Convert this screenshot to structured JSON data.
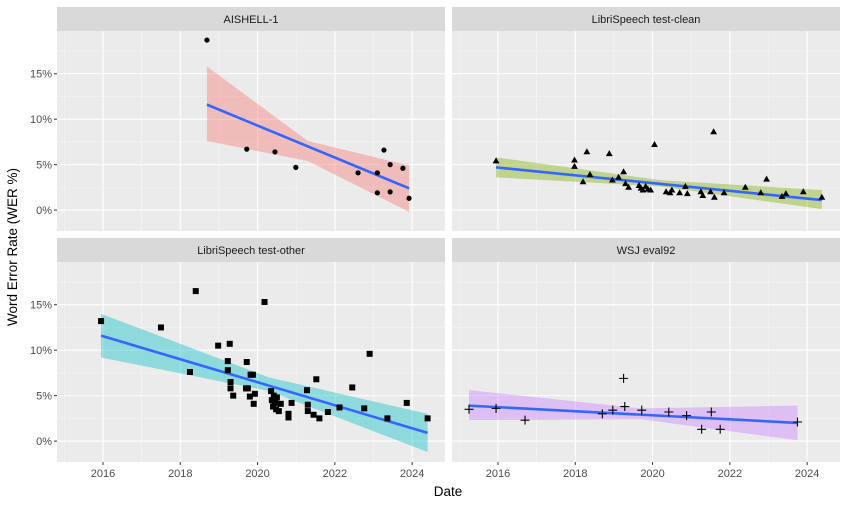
{
  "chart_data": {
    "type": "scatter",
    "layout": "facet-grid 2x2",
    "xlabel": "Date",
    "ylabel": "Word Error Rate (WER %)",
    "xlim": [
      2014.81,
      2024.85
    ],
    "ylim": [
      -2.3,
      19.7
    ],
    "x_ticks": [
      2016,
      2018,
      2020,
      2022,
      2024
    ],
    "x_tick_labels": [
      "2016",
      "2018",
      "2020",
      "2022",
      "2024"
    ],
    "y_ticks": [
      0,
      5,
      10,
      15
    ],
    "y_tick_labels": [
      "0%",
      "5%",
      "10%",
      "15%"
    ],
    "grid": true,
    "trend_color": "#3366FF",
    "point_color": "#000000",
    "panel_background": "#EBEBEB",
    "strip_background": "#D9D9D9",
    "panels": [
      {
        "title": "AISHELL-1",
        "marker": "circle",
        "band_color": "#F8766D",
        "points": [
          [
            2018.69,
            18.7
          ],
          [
            2019.72,
            6.7
          ],
          [
            2020.45,
            6.4
          ],
          [
            2020.99,
            4.7
          ],
          [
            2022.6,
            4.1
          ],
          [
            2023.1,
            1.9
          ],
          [
            2023.1,
            4.1
          ],
          [
            2023.27,
            6.6
          ],
          [
            2023.43,
            5.0
          ],
          [
            2023.43,
            2.0
          ],
          [
            2023.76,
            4.6
          ],
          [
            2023.92,
            1.3
          ]
        ],
        "trend": {
          "x": [
            2018.69,
            2023.92
          ],
          "y": [
            11.6,
            2.4
          ]
        },
        "band": {
          "x": [
            2018.69,
            2021.3,
            2023.92
          ],
          "lower": [
            7.6,
            5.4,
            -0.2
          ],
          "upper": [
            15.8,
            7.6,
            4.9
          ]
        }
      },
      {
        "title": "LibriSpeech test-clean",
        "marker": "triangle",
        "band_color": "#7CAE00",
        "points": [
          [
            2015.95,
            5.4
          ],
          [
            2017.98,
            4.8
          ],
          [
            2017.98,
            5.5
          ],
          [
            2018.3,
            6.4
          ],
          [
            2018.88,
            6.2
          ],
          [
            2018.2,
            3.1
          ],
          [
            2018.38,
            3.9
          ],
          [
            2018.96,
            3.3
          ],
          [
            2019.12,
            3.6
          ],
          [
            2019.25,
            4.2
          ],
          [
            2019.3,
            2.9
          ],
          [
            2019.38,
            2.5
          ],
          [
            2019.65,
            2.7
          ],
          [
            2019.7,
            2.4
          ],
          [
            2019.75,
            2.2
          ],
          [
            2019.82,
            2.6
          ],
          [
            2019.88,
            2.3
          ],
          [
            2019.95,
            2.2
          ],
          [
            2020.05,
            7.2
          ],
          [
            2020.35,
            2.0
          ],
          [
            2020.45,
            1.9
          ],
          [
            2020.5,
            2.2
          ],
          [
            2020.7,
            1.9
          ],
          [
            2020.85,
            2.6
          ],
          [
            2020.9,
            1.8
          ],
          [
            2021.25,
            2.0
          ],
          [
            2021.3,
            1.6
          ],
          [
            2021.5,
            2.0
          ],
          [
            2021.58,
            8.6
          ],
          [
            2021.6,
            1.4
          ],
          [
            2021.85,
            1.9
          ],
          [
            2022.4,
            2.5
          ],
          [
            2022.8,
            1.9
          ],
          [
            2022.95,
            3.4
          ],
          [
            2023.35,
            1.5
          ],
          [
            2023.45,
            1.8
          ],
          [
            2023.9,
            2.0
          ],
          [
            2024.38,
            1.4
          ]
        ],
        "trend": {
          "x": [
            2015.95,
            2024.38
          ],
          "y": [
            4.7,
            1.1
          ]
        },
        "band": {
          "x": [
            2015.95,
            2020.2,
            2024.38
          ],
          "lower": [
            3.6,
            2.6,
            0.1
          ],
          "upper": [
            5.8,
            3.3,
            2.2
          ]
        }
      },
      {
        "title": "LibriSpeech test-other",
        "marker": "square",
        "band_color": "#00BFC4",
        "points": [
          [
            2015.95,
            13.2
          ],
          [
            2017.5,
            12.5
          ],
          [
            2018.25,
            7.6
          ],
          [
            2018.4,
            16.5
          ],
          [
            2018.98,
            10.5
          ],
          [
            2019.23,
            8.8
          ],
          [
            2019.23,
            7.8
          ],
          [
            2019.28,
            10.7
          ],
          [
            2019.3,
            6.5
          ],
          [
            2019.3,
            5.8
          ],
          [
            2019.37,
            5.0
          ],
          [
            2019.7,
            5.8
          ],
          [
            2019.72,
            8.7
          ],
          [
            2019.75,
            5.8
          ],
          [
            2019.8,
            4.9
          ],
          [
            2019.82,
            7.3
          ],
          [
            2019.88,
            7.3
          ],
          [
            2019.9,
            4.1
          ],
          [
            2019.93,
            5.2
          ],
          [
            2020.18,
            15.3
          ],
          [
            2020.35,
            5.5
          ],
          [
            2020.37,
            4.5
          ],
          [
            2020.4,
            3.8
          ],
          [
            2020.42,
            5.0
          ],
          [
            2020.45,
            4.2
          ],
          [
            2020.48,
            3.5
          ],
          [
            2020.5,
            4.8
          ],
          [
            2020.55,
            3.3
          ],
          [
            2020.6,
            4.1
          ],
          [
            2020.8,
            3.0
          ],
          [
            2020.8,
            2.6
          ],
          [
            2020.88,
            4.2
          ],
          [
            2021.28,
            5.6
          ],
          [
            2021.3,
            4.0
          ],
          [
            2021.3,
            3.3
          ],
          [
            2021.45,
            2.9
          ],
          [
            2021.52,
            6.8
          ],
          [
            2021.6,
            2.5
          ],
          [
            2021.82,
            3.2
          ],
          [
            2022.12,
            3.7
          ],
          [
            2022.45,
            5.9
          ],
          [
            2022.76,
            3.6
          ],
          [
            2022.9,
            9.6
          ],
          [
            2023.36,
            2.5
          ],
          [
            2023.86,
            4.2
          ],
          [
            2024.4,
            2.5
          ]
        ],
        "trend": {
          "x": [
            2015.95,
            2024.4
          ],
          "y": [
            11.6,
            0.9
          ]
        },
        "band": {
          "x": [
            2015.95,
            2020.3,
            2024.4
          ],
          "lower": [
            9.2,
            5.5,
            -1.2
          ],
          "upper": [
            14.0,
            7.0,
            3.0
          ]
        }
      },
      {
        "title": "WSJ eval92",
        "marker": "plus",
        "band_color": "#C77CFF",
        "points": [
          [
            2015.25,
            3.5
          ],
          [
            2015.95,
            3.6
          ],
          [
            2016.7,
            2.3
          ],
          [
            2018.7,
            3.0
          ],
          [
            2018.97,
            3.4
          ],
          [
            2019.25,
            6.9
          ],
          [
            2019.28,
            3.8
          ],
          [
            2019.72,
            3.4
          ],
          [
            2020.42,
            3.2
          ],
          [
            2020.88,
            2.8
          ],
          [
            2021.27,
            1.3
          ],
          [
            2021.52,
            3.2
          ],
          [
            2021.75,
            1.3
          ],
          [
            2023.75,
            2.1
          ]
        ],
        "trend": {
          "x": [
            2015.25,
            2023.75
          ],
          "y": [
            3.9,
            2.0
          ]
        },
        "band": {
          "x": [
            2015.25,
            2019.7,
            2023.75
          ],
          "lower": [
            2.3,
            2.4,
            0.1
          ],
          "upper": [
            5.6,
            3.6,
            3.9
          ]
        }
      }
    ]
  }
}
